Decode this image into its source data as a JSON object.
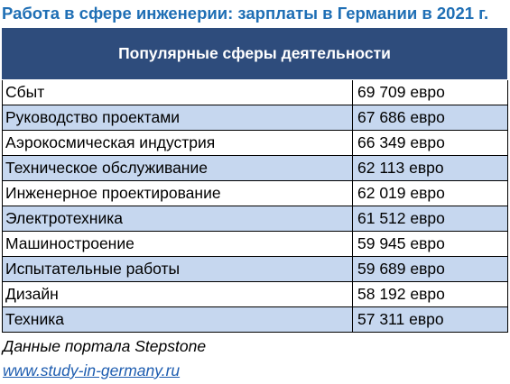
{
  "title": "Работа в сфере инженерии: зарплаты в Германии в 2021 г.",
  "header": "Популярные сферы деятельности",
  "rows": [
    {
      "name": "Сбыт",
      "salary": "69 709 евро"
    },
    {
      "name": "Руководство проектами",
      "salary": "67 686 евро"
    },
    {
      "name": "Аэрокосмическая индустрия",
      "salary": "66 349 евро"
    },
    {
      "name": "Техническое обслуживание",
      "salary": "62 113 евро"
    },
    {
      "name": "Инженерное проектирование",
      "salary": "62 019 евро"
    },
    {
      "name": "Электротехника",
      "salary": "61 512 евро"
    },
    {
      "name": "Машиностроение",
      "salary": "59 945 евро"
    },
    {
      "name": "Испытательные работы",
      "salary": "59 689 евро"
    },
    {
      "name": "Дизайн",
      "salary": "58 192 евро"
    },
    {
      "name": "Техника",
      "salary": "57 311 евро"
    }
  ],
  "source_note": "Данные портала Stepstone",
  "link_text": "www.study-in-germany.ru",
  "colors": {
    "title": "#1f6fb5",
    "header_bg": "#2e4c7c",
    "header_text": "#ffffff",
    "row_even": "#ffffff",
    "row_odd": "#c6d7ef",
    "link": "#1e5db0",
    "border": "#000000"
  }
}
